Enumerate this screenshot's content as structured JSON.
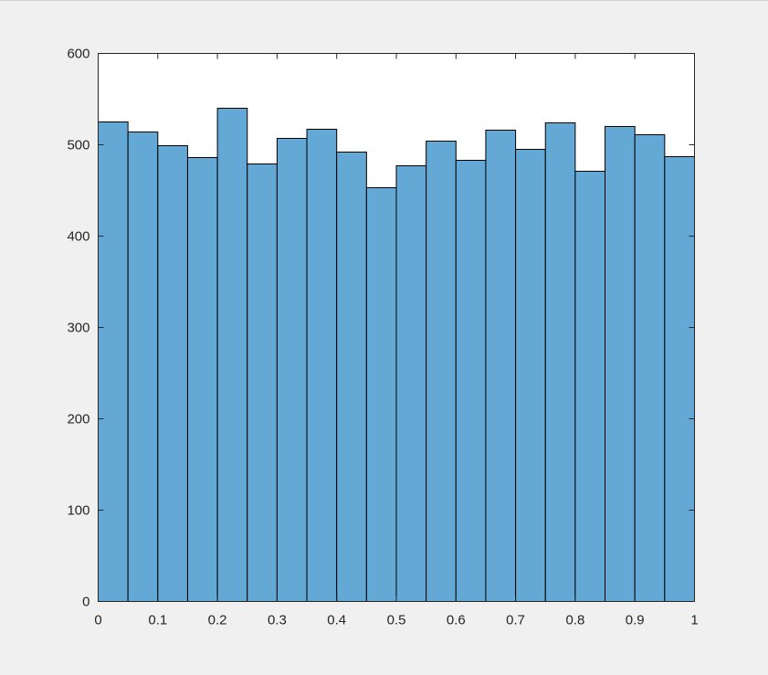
{
  "chart_data": {
    "type": "bar",
    "subtype": "histogram",
    "title": "",
    "xlabel": "",
    "ylabel": "",
    "bin_edges": [
      0,
      0.05,
      0.1,
      0.15,
      0.2,
      0.25,
      0.3,
      0.35,
      0.4,
      0.45,
      0.5,
      0.55,
      0.6,
      0.65,
      0.7,
      0.75,
      0.8,
      0.85,
      0.9,
      0.95,
      1
    ],
    "values": [
      525,
      514,
      499,
      486,
      540,
      479,
      507,
      517,
      492,
      453,
      477,
      504,
      483,
      516,
      495,
      524,
      471,
      520,
      511,
      487
    ],
    "xlim": [
      0,
      1
    ],
    "ylim": [
      0,
      600
    ],
    "x_ticks": [
      0,
      0.1,
      0.2,
      0.3,
      0.4,
      0.5,
      0.6,
      0.7,
      0.8,
      0.9,
      1
    ],
    "x_tick_labels": [
      "0",
      "0.1",
      "0.2",
      "0.3",
      "0.4",
      "0.5",
      "0.6",
      "0.7",
      "0.8",
      "0.9",
      "1"
    ],
    "y_ticks": [
      0,
      100,
      200,
      300,
      400,
      500,
      600
    ],
    "y_tick_labels": [
      "0",
      "100",
      "200",
      "300",
      "400",
      "500",
      "600"
    ],
    "grid": false,
    "legend": "none",
    "colors": {
      "bar_fill": "#64a8d6",
      "bar_edge": "#000000",
      "axes_background": "#ffffff",
      "axes_line": "#262626",
      "figure_background": "#f0f0f0"
    }
  }
}
